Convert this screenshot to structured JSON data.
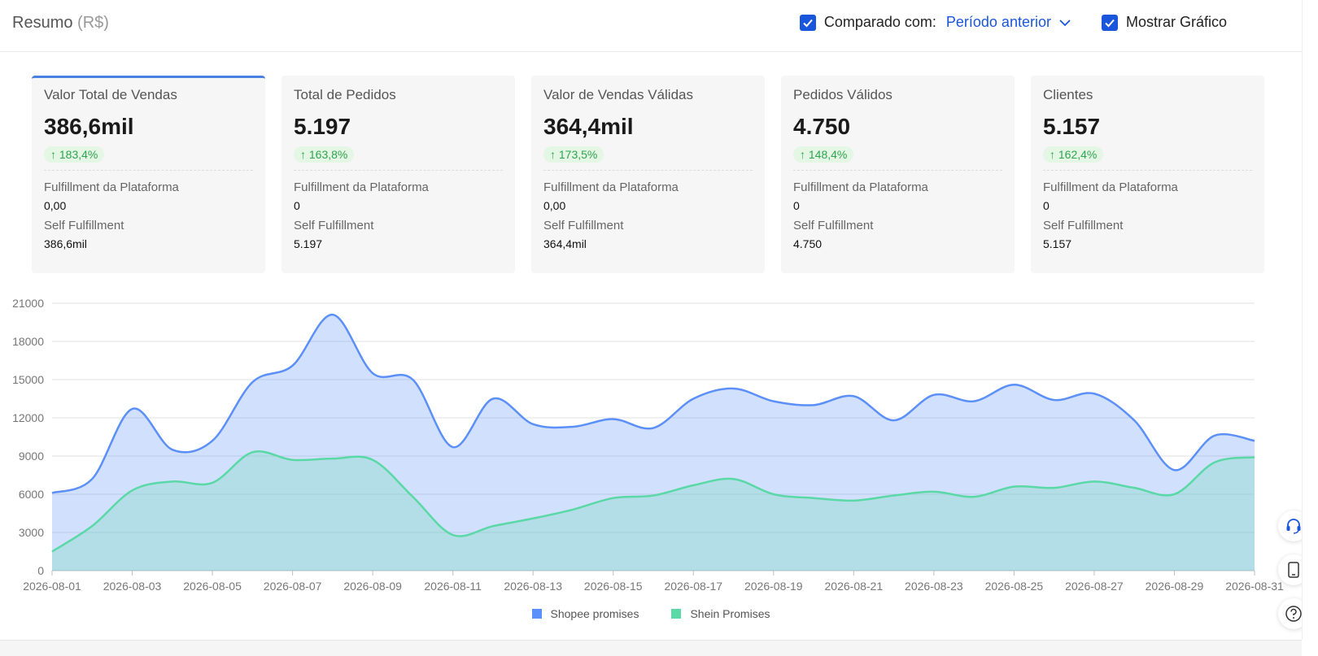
{
  "header": {
    "title": "Resumo",
    "unit": "(R$)",
    "compare_label": "Comparado com:",
    "compare_value": "Período anterior",
    "show_chart_label": "Mostrar Gráfico"
  },
  "cards": [
    {
      "title": "Valor Total de Vendas",
      "value": "386,6mil",
      "delta": "183,4%",
      "fp_label": "Fulfillment da Plataforma",
      "fp_value": "0,00",
      "sf_label": "Self Fulfillment",
      "sf_value": "386,6mil"
    },
    {
      "title": "Total de Pedidos",
      "value": "5.197",
      "delta": "163,8%",
      "fp_label": "Fulfillment da Plataforma",
      "fp_value": "0",
      "sf_label": "Self Fulfillment",
      "sf_value": "5.197"
    },
    {
      "title": "Valor de Vendas Válidas",
      "value": "364,4mil",
      "delta": "173,5%",
      "fp_label": "Fulfillment da Plataforma",
      "fp_value": "0,00",
      "sf_label": "Self Fulfillment",
      "sf_value": "364,4mil"
    },
    {
      "title": "Pedidos Válidos",
      "value": "4.750",
      "delta": "148,4%",
      "fp_label": "Fulfillment da Plataforma",
      "fp_value": "0",
      "sf_label": "Self Fulfillment",
      "sf_value": "4.750"
    },
    {
      "title": "Clientes",
      "value": "5.157",
      "delta": "162,4%",
      "fp_label": "Fulfillment da Plataforma",
      "fp_value": "0",
      "sf_label": "Self Fulfillment",
      "sf_value": "5.157"
    }
  ],
  "colors": {
    "accent": "#1a56db",
    "shopee": "#5b8ff9",
    "shein": "#5ad8a6",
    "positive": "#2ea44f"
  },
  "chart_data": {
    "type": "area",
    "ylim": [
      0,
      21000
    ],
    "yticks": [
      0,
      3000,
      6000,
      9000,
      12000,
      15000,
      18000,
      21000
    ],
    "xticks": [
      "2026-08-01",
      "2026-08-03",
      "2026-08-05",
      "2026-08-07",
      "2026-08-09",
      "2026-08-11",
      "2026-08-13",
      "2026-08-15",
      "2026-08-17",
      "2026-08-19",
      "2026-08-21",
      "2026-08-23",
      "2026-08-25",
      "2026-08-27",
      "2026-08-29",
      "2026-08-31"
    ],
    "x": [
      "2026-08-01",
      "2026-08-02",
      "2026-08-03",
      "2026-08-04",
      "2026-08-05",
      "2026-08-06",
      "2026-08-07",
      "2026-08-08",
      "2026-08-09",
      "2026-08-10",
      "2026-08-11",
      "2026-08-12",
      "2026-08-13",
      "2026-08-14",
      "2026-08-15",
      "2026-08-16",
      "2026-08-17",
      "2026-08-18",
      "2026-08-19",
      "2026-08-20",
      "2026-08-21",
      "2026-08-22",
      "2026-08-23",
      "2026-08-24",
      "2026-08-25",
      "2026-08-26",
      "2026-08-27",
      "2026-08-28",
      "2026-08-29",
      "2026-08-30",
      "2026-08-31"
    ],
    "series": [
      {
        "name": "Shopee promises",
        "values": [
          6100,
          7200,
          12700,
          9500,
          10200,
          14800,
          16100,
          20100,
          15500,
          15000,
          9700,
          13500,
          11500,
          11300,
          11900,
          11200,
          13500,
          14300,
          13300,
          13000,
          13700,
          11800,
          13800,
          13300,
          14600,
          13400,
          13900,
          11800,
          7900,
          10600,
          10200
        ]
      },
      {
        "name": "Shein Promises",
        "values": [
          1500,
          3500,
          6300,
          7000,
          6900,
          9300,
          8700,
          8800,
          8700,
          5800,
          2800,
          3500,
          4100,
          4800,
          5700,
          5900,
          6700,
          7200,
          6000,
          5700,
          5500,
          5900,
          6200,
          5800,
          6600,
          6500,
          7000,
          6500,
          6000,
          8500,
          8900
        ]
      }
    ],
    "legend_position": "bottom-center",
    "grid": true
  }
}
